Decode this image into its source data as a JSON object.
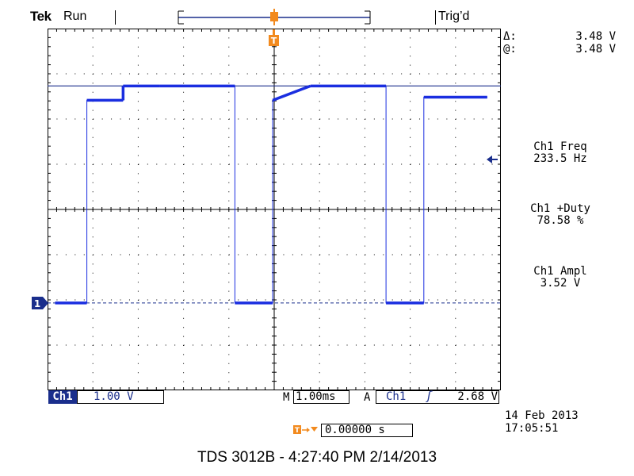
{
  "header": {
    "brand": "Tek",
    "acq_state": "Run",
    "trigger_state": "Trig’d"
  },
  "readouts": {
    "cursor_delta_label": "Δ:",
    "cursor_delta_value": "3.48 V",
    "cursor_at_label": "@:",
    "cursor_at_value": "3.48 V",
    "freq_label": "Ch1 Freq",
    "freq_value": "233.5 Hz",
    "duty_label": "Ch1 +Duty",
    "duty_value": "78.58 %",
    "ampl_label": "Ch1 Ampl",
    "ampl_value": "3.52 V"
  },
  "bottom": {
    "channel_label": "Ch1",
    "channel_scale": "1.00 V",
    "timebase_prefix": "M",
    "timebase_value": "1.00ms",
    "trigger_prefix": "A",
    "trigger_source": "Ch1",
    "trigger_slope_symbol": "ʃ",
    "trigger_level": "2.68 V",
    "trigger_position": "0.00000 s",
    "date": "14 Feb  2013",
    "time": "17:05:51"
  },
  "screen": {
    "channel_marker": "1",
    "trigger_marker": "T"
  },
  "caption": "TDS 3012B - 4:27:40 PM   2/14/2013",
  "colors": {
    "trace": "#1a2ee0",
    "cursor": "#1a2e8c",
    "trigger_marker": "#f28a1e",
    "grid": "#000000"
  },
  "icons": {
    "trigger_position_marker": "trigger-t-icon",
    "channel_ground_marker": "channel-1-marker-icon",
    "frequency_indicator": "left-arrow-icon"
  },
  "chart_data": {
    "type": "line",
    "waveform": "square",
    "series": [
      {
        "name": "Ch1",
        "x_ms": [
          -2.9,
          -2.48,
          -2.48,
          -2.0,
          -2.0,
          -1.52,
          -0.52,
          -0.52,
          -0.02,
          -0.02,
          0.48,
          1.48,
          1.48,
          1.98,
          1.98,
          2.82
        ],
        "y_v": [
          0.0,
          0.0,
          3.25,
          3.25,
          3.48,
          3.48,
          3.48,
          0.0,
          0.0,
          3.25,
          3.48,
          3.48,
          0.0,
          0.0,
          3.3,
          3.3
        ]
      }
    ],
    "x_unit": "ms",
    "y_unit": "V",
    "xlim": [
      -3.0,
      3.0
    ],
    "ylim": [
      -1.4,
      4.4
    ],
    "cursor_level_v": 3.48,
    "ground_level_v": 0.0,
    "grid": true
  }
}
